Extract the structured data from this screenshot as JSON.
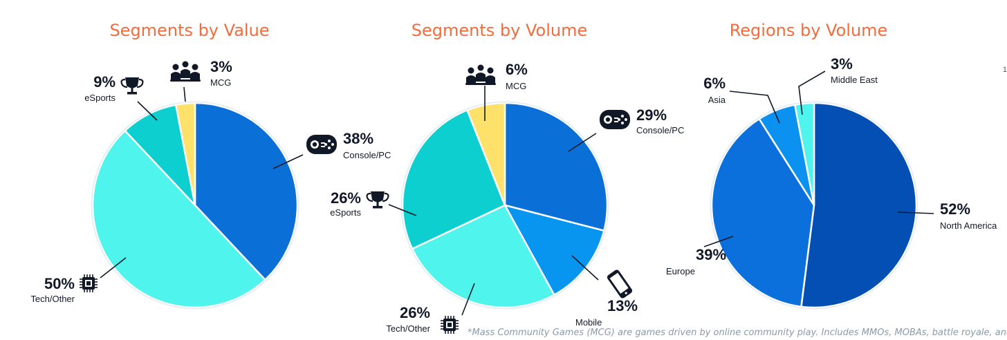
{
  "colors": {
    "title": "#f26c3c",
    "text": "#111827",
    "footnote": "#8a9aa7"
  },
  "page_number": "1",
  "footnote": "*Mass Community Games (MCG) are games driven by online community play. Includes MMOs, MOBAs, battle royale, and met",
  "chart_data": [
    {
      "type": "pie",
      "title": "Segments by Value",
      "slices": [
        {
          "label": "Console/PC",
          "value": 38,
          "pct": "38%",
          "color": "#0a6fd6",
          "icon": "gamepad-icon"
        },
        {
          "label": "Tech/Other",
          "value": 50,
          "pct": "50%",
          "color": "#4ff4ec",
          "icon": "chip-icon"
        },
        {
          "label": "eSports",
          "value": 9,
          "pct": "9%",
          "color": "#0ecfcf",
          "icon": "trophy-icon"
        },
        {
          "label": "MCG",
          "value": 3,
          "pct": "3%",
          "color": "#fde16b",
          "icon": "community-icon"
        }
      ]
    },
    {
      "type": "pie",
      "title": "Segments by Volume",
      "slices": [
        {
          "label": "Console/PC",
          "value": 29,
          "pct": "29%",
          "color": "#0a6fd6",
          "icon": "gamepad-icon"
        },
        {
          "label": "Mobile",
          "value": 13,
          "pct": "13%",
          "color": "#0895f0",
          "icon": "phone-icon"
        },
        {
          "label": "Tech/Other",
          "value": 26,
          "pct": "26%",
          "color": "#4ff4ec",
          "icon": "chip-icon"
        },
        {
          "label": "eSports",
          "value": 26,
          "pct": "26%",
          "color": "#0ecfcf",
          "icon": "trophy-icon"
        },
        {
          "label": "MCG",
          "value": 6,
          "pct": "6%",
          "color": "#fde16b",
          "icon": "community-icon"
        }
      ]
    },
    {
      "type": "pie",
      "title": "Regions by Volume",
      "slices": [
        {
          "label": "North America",
          "value": 52,
          "pct": "52%",
          "color": "#034fb4",
          "icon": ""
        },
        {
          "label": "Europe",
          "value": 39,
          "pct": "39%",
          "color": "#0b70dc",
          "icon": ""
        },
        {
          "label": "Asia",
          "value": 6,
          "pct": "6%",
          "color": "#0b91f0",
          "icon": ""
        },
        {
          "label": "Middle East",
          "value": 3,
          "pct": "3%",
          "color": "#4ff4ec",
          "icon": ""
        }
      ]
    }
  ]
}
